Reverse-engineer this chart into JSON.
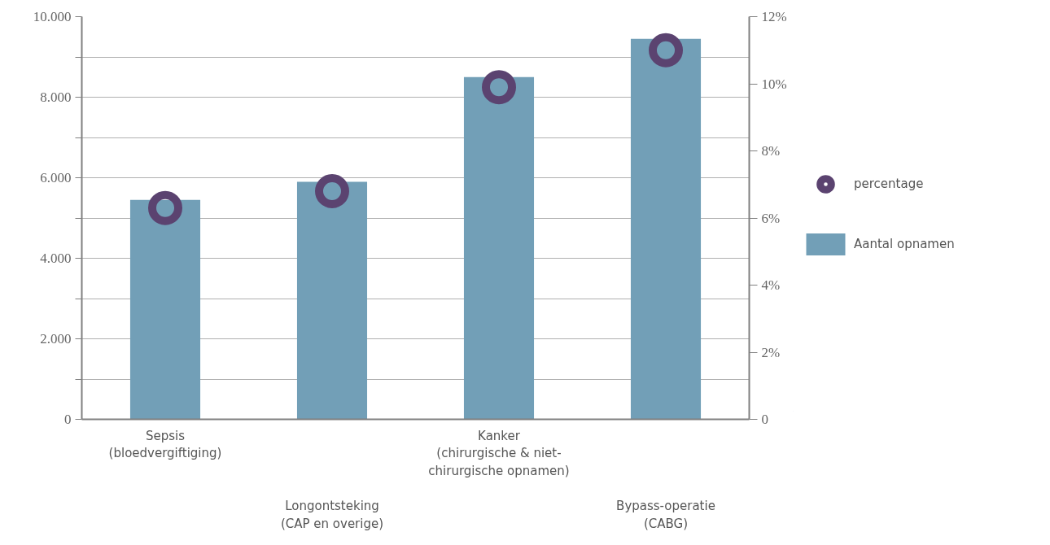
{
  "chart_data": {
    "type": "bar",
    "categories": [
      "Sepsis\n(bloedvergiftiging)",
      "Longontsteking\n(CAP en overige)",
      "Kanker\n(chirurgische & niet-\nchirurgische opnamen)",
      "Bypass-operatie\n(CABG)"
    ],
    "series": [
      {
        "name": "Aantal opnamen",
        "color": "#729fb7",
        "values": [
          5450,
          5900,
          8500,
          9450
        ]
      },
      {
        "name": "percentage",
        "type": "scatter",
        "axis": "y2",
        "color": "#5b4370",
        "values": [
          6.3,
          6.8,
          9.9,
          11.0
        ]
      }
    ],
    "ylim": [
      0,
      10000
    ],
    "yticks": [
      {
        "value": 0,
        "label": "0"
      },
      {
        "value": 1000,
        "label": null
      },
      {
        "value": 2000,
        "label": "2.000"
      },
      {
        "value": 3000,
        "label": null
      },
      {
        "value": 4000,
        "label": "4.000"
      },
      {
        "value": 5000,
        "label": null
      },
      {
        "value": 6000,
        "label": "6.000"
      },
      {
        "value": 7000,
        "label": null
      },
      {
        "value": 8000,
        "label": "8.000"
      },
      {
        "value": 9000,
        "label": null
      },
      {
        "value": 10000,
        "label": "10.000"
      }
    ],
    "y2lim": [
      0,
      12
    ],
    "y2ticks": [
      {
        "value": 0,
        "label": "0"
      },
      {
        "value": 2,
        "label": "2%"
      },
      {
        "value": 4,
        "label": "4%"
      },
      {
        "value": 6,
        "label": "6%"
      },
      {
        "value": 8,
        "label": "8%"
      },
      {
        "value": 10,
        "label": "10%"
      },
      {
        "value": 12,
        "label": "12%"
      }
    ],
    "grid": "y",
    "legend": "right",
    "marker": "circle"
  }
}
